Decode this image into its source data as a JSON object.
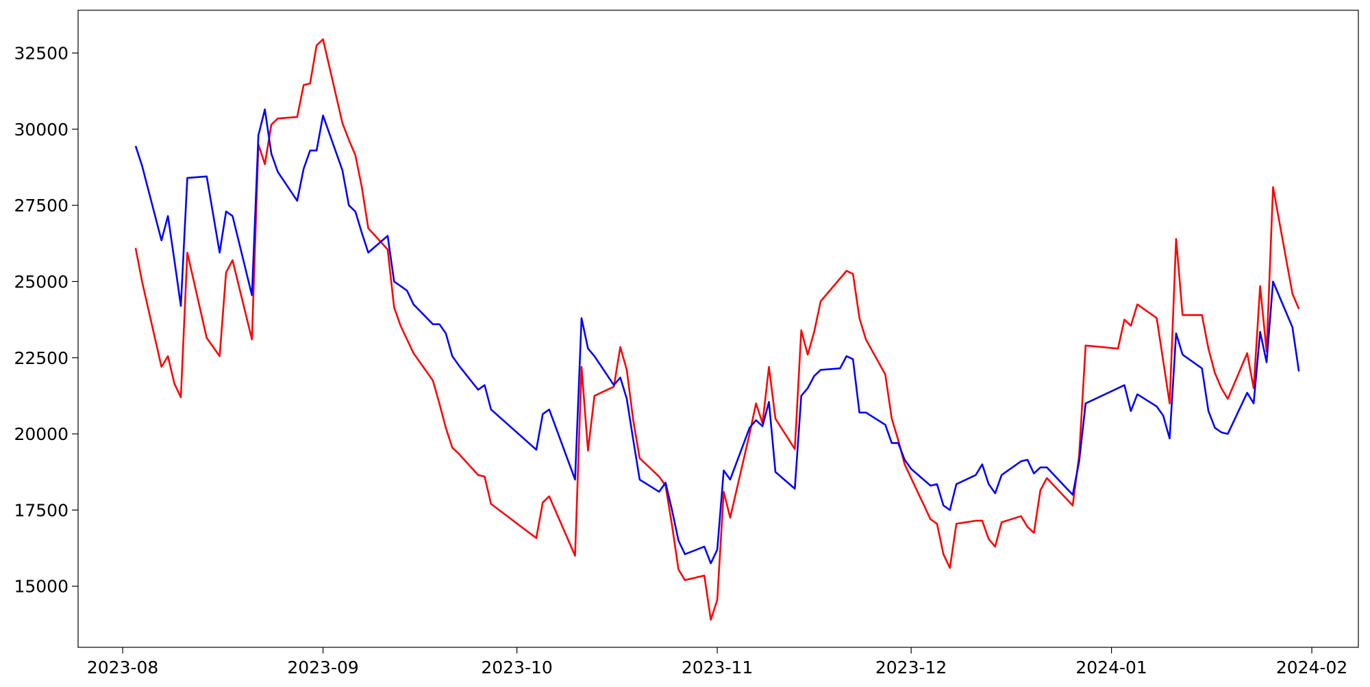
{
  "chart_data": {
    "type": "line",
    "x": [
      2,
      3,
      6,
      7,
      8,
      9,
      10,
      13,
      14,
      15,
      16,
      17,
      20,
      21,
      22,
      23,
      24,
      27,
      28,
      29,
      30,
      31,
      34,
      35,
      36,
      37,
      38,
      41,
      42,
      43,
      44,
      45,
      48,
      49,
      50,
      51,
      52,
      55,
      56,
      57,
      64,
      65,
      66,
      70,
      71,
      72,
      73,
      76,
      77,
      78,
      79,
      80,
      83,
      84,
      85,
      86,
      87,
      90,
      91,
      92,
      93,
      94,
      97,
      98,
      99,
      100,
      101,
      104,
      105,
      106,
      107,
      108,
      111,
      112,
      113,
      114,
      115,
      118,
      119,
      120,
      121,
      122,
      125,
      126,
      127,
      128,
      129,
      132,
      133,
      134,
      135,
      136,
      139,
      140,
      141,
      142,
      143,
      147,
      148,
      149,
      154,
      155,
      156,
      157,
      160,
      161,
      162,
      163,
      164,
      167,
      168,
      169,
      170,
      171,
      174,
      175,
      176,
      177,
      178,
      181,
      182
    ],
    "series": [
      {
        "color": "#ff0000",
        "values": [
          26100,
          25000,
          22200,
          22550,
          21650,
          21200,
          25950,
          23150,
          22850,
          22550,
          25300,
          25700,
          23100,
          29500,
          28850,
          30150,
          30350,
          30400,
          31450,
          31500,
          32750,
          32950,
          30200,
          29650,
          29150,
          28100,
          26750,
          26050,
          24150,
          23550,
          23100,
          22650,
          21750,
          21000,
          20200,
          19550,
          19350,
          18650,
          18600,
          17700,
          16580,
          17750,
          17950,
          16000,
          22200,
          19450,
          21250,
          21550,
          22850,
          22100,
          20450,
          19200,
          18600,
          18300,
          17000,
          15550,
          15200,
          15350,
          13900,
          14550,
          18100,
          17250,
          20000,
          21000,
          20350,
          22200,
          20500,
          19500,
          23400,
          22600,
          23350,
          24350,
          25100,
          25350,
          25250,
          23800,
          23100,
          21950,
          20500,
          19800,
          19000,
          18550,
          17200,
          17050,
          16050,
          15600,
          17050,
          17150,
          17150,
          16550,
          16300,
          17100,
          17300,
          16950,
          16750,
          18150,
          18550,
          17650,
          19300,
          22900,
          22800,
          23750,
          23550,
          24250,
          23800,
          22400,
          21000,
          26400,
          23900,
          23900,
          22800,
          22000,
          21500,
          21150,
          22650,
          21500,
          24850,
          22700,
          28100,
          24600,
          24100
        ]
      },
      {
        "color": "#0000ff",
        "values": [
          29450,
          28800,
          26350,
          27150,
          25700,
          24200,
          28400,
          28450,
          27200,
          25950,
          27300,
          27150,
          24550,
          29800,
          30650,
          29200,
          28600,
          27650,
          28700,
          29300,
          29300,
          30450,
          28650,
          27500,
          27300,
          26600,
          25950,
          26500,
          25000,
          24850,
          24700,
          24250,
          23600,
          23600,
          23300,
          22550,
          22250,
          21450,
          21600,
          20800,
          19480,
          20650,
          20800,
          18500,
          23800,
          22800,
          22550,
          21600,
          21850,
          21150,
          19800,
          18500,
          18100,
          18400,
          17500,
          16500,
          16050,
          16300,
          15750,
          16200,
          18800,
          18500,
          20200,
          20450,
          20250,
          21050,
          18750,
          18200,
          21250,
          21500,
          21900,
          22100,
          22150,
          22550,
          22450,
          20700,
          20700,
          20300,
          19700,
          19700,
          19150,
          18850,
          18300,
          18350,
          17650,
          17500,
          18350,
          18650,
          19000,
          18350,
          18050,
          18650,
          19100,
          19150,
          18700,
          18900,
          18900,
          18000,
          19100,
          21000,
          21500,
          21600,
          20750,
          21300,
          20900,
          20600,
          19850,
          23300,
          22600,
          22150,
          20750,
          20200,
          20050,
          20000,
          21350,
          21000,
          23350,
          22350,
          25000,
          23500,
          22050
        ]
      }
    ],
    "xlim": [
      -6.9,
      191.2
    ],
    "xticks": [
      {
        "value": 0,
        "label": "2023-08"
      },
      {
        "value": 31,
        "label": "2023-09"
      },
      {
        "value": 61,
        "label": "2023-10"
      },
      {
        "value": 92,
        "label": "2023-11"
      },
      {
        "value": 122,
        "label": "2023-12"
      },
      {
        "value": 153,
        "label": "2024-01"
      },
      {
        "value": 184,
        "label": "2024-02"
      }
    ],
    "ylim": [
      12995,
      33903
    ],
    "yticks": [
      15000,
      17500,
      20000,
      22500,
      25000,
      27500,
      30000,
      32500
    ],
    "grid": false
  }
}
